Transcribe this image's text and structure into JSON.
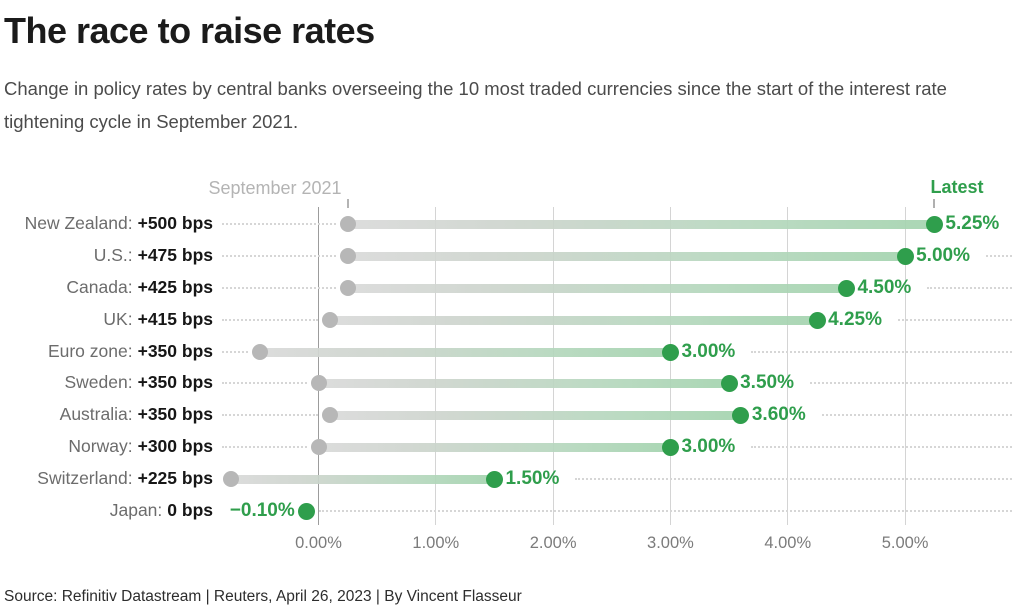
{
  "header": {
    "title": "The race to raise rates",
    "subtitle": "Change in policy rates by central banks overseeing the 10 most traded currencies since the start of the interest rate tightening cycle in September 2021."
  },
  "annotations": {
    "start_label": "September 2021",
    "latest_label": "Latest"
  },
  "colors": {
    "accent_green": "#2f9e4c",
    "bar_green_light": "#a3d3ae",
    "start_gray": "#b7b7b7",
    "bar_gray_light": "#d9d9d9",
    "gridline": "#d4d4d4",
    "zero_gridline": "#9c9c9c"
  },
  "chart_data": {
    "type": "dumbbell",
    "title": "The race to raise rates",
    "unit": "percent",
    "x_ticks": [
      "0.00%",
      "1.00%",
      "2.00%",
      "3.00%",
      "4.00%",
      "5.00%"
    ],
    "x_tick_values": [
      0,
      1,
      2,
      3,
      4,
      5
    ],
    "xlim": [
      -0.97,
      5.9
    ],
    "grid": "vertical",
    "start_annotation": "September 2021",
    "end_annotation": "Latest",
    "rows": [
      {
        "label": "New Zealand:",
        "change": "+500 bps",
        "start": 0.25,
        "end": 5.25,
        "latest_label": "5.25%"
      },
      {
        "label": "U.S.:",
        "change": "+475 bps",
        "start": 0.25,
        "end": 5.0,
        "latest_label": "5.00%"
      },
      {
        "label": "Canada:",
        "change": "+425 bps",
        "start": 0.25,
        "end": 4.5,
        "latest_label": "4.50%"
      },
      {
        "label": "UK:",
        "change": "+415 bps",
        "start": 0.1,
        "end": 4.25,
        "latest_label": "4.25%"
      },
      {
        "label": "Euro zone:",
        "change": "+350 bps",
        "start": -0.5,
        "end": 3.0,
        "latest_label": "3.00%"
      },
      {
        "label": "Sweden:",
        "change": "+350 bps",
        "start": 0.0,
        "end": 3.5,
        "latest_label": "3.50%"
      },
      {
        "label": "Australia:",
        "change": "+350 bps",
        "start": 0.1,
        "end": 3.6,
        "latest_label": "3.60%"
      },
      {
        "label": "Norway:",
        "change": "+300 bps",
        "start": 0.0,
        "end": 3.0,
        "latest_label": "3.00%"
      },
      {
        "label": "Switzerland:",
        "change": "+225 bps",
        "start": -0.75,
        "end": 1.5,
        "latest_label": "1.50%"
      },
      {
        "label": "Japan:",
        "change": "0 bps",
        "start": -0.1,
        "end": -0.1,
        "latest_label": "−0.10%"
      }
    ]
  },
  "footer": {
    "source": "Source: Refinitiv Datastream | Reuters, April 26, 2023 | By Vincent Flasseur"
  }
}
